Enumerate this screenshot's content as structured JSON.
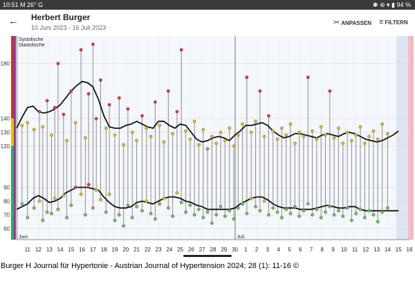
{
  "status": {
    "time": "10:51",
    "indicators": "M 26° G",
    "right_icons": "✱ ⊛ ▾ ▮",
    "battery": "94 %"
  },
  "header": {
    "title": "Herbert Burger",
    "date_range": "10 Juni 2023 - 16 Juli 2023",
    "back_icon": "arrow-left-icon"
  },
  "actions": {
    "adjust_label": "ANPASSEN",
    "filter_label": "FILTERN"
  },
  "caption": "Burger H Journal für Hypertonie - Austrian Journal of Hypertension 2024; 28 (1): 11-16 ©",
  "chart_data": {
    "type": "line",
    "legend": [
      "Systolische",
      "Diastolische"
    ],
    "y_ticks": [
      60,
      70,
      80,
      90,
      120,
      130,
      140,
      180
    ],
    "ylim": [
      52,
      200
    ],
    "x_ticks": [
      "11",
      "12",
      "13",
      "14",
      "15",
      "16",
      "17",
      "18",
      "19",
      "20",
      "21",
      "22",
      "23",
      "24",
      "25",
      "26",
      "27",
      "28",
      "29",
      "30",
      "1",
      "2",
      "3",
      "4",
      "5",
      "6",
      "7",
      "8",
      "9",
      "10",
      "11",
      "12",
      "13",
      "14",
      "15",
      "16"
    ],
    "month_labels": [
      {
        "label": "Juni",
        "day": 10
      },
      {
        "label": "Juli",
        "day": 30
      }
    ],
    "systolic_trend": {
      "days": [
        10,
        10.5,
        11,
        11.5,
        12,
        12.5,
        13,
        13.5,
        14,
        14.5,
        15,
        15.5,
        16,
        16.5,
        17,
        17.5,
        18,
        18.5,
        19,
        19.5,
        20,
        20.5,
        21,
        21.5,
        22,
        22.5,
        23,
        23.5,
        24,
        24.5,
        25,
        25.5,
        26,
        26.5,
        27,
        27.5,
        28,
        28.5,
        29,
        29.5,
        30,
        30.5,
        31,
        31.5,
        32,
        32.5,
        33,
        33.5,
        34,
        34.5,
        35,
        35.5,
        36,
        36.5,
        37,
        37.5,
        38,
        38.5,
        39,
        39.5,
        40,
        40.5,
        41,
        41.5,
        42,
        42.5,
        43,
        43.5,
        44,
        44.5,
        45
      ],
      "values": [
        133,
        141,
        148,
        149,
        145,
        144,
        145,
        147,
        150,
        155,
        160,
        164,
        167,
        166,
        163,
        154,
        142,
        134,
        133,
        133,
        135,
        136,
        138,
        136,
        134,
        133,
        138,
        138,
        135,
        133,
        136,
        135,
        130,
        125,
        123,
        124,
        126,
        127,
        126,
        124,
        128,
        131,
        135,
        135,
        136,
        137,
        135,
        131,
        128,
        126,
        127,
        129,
        129,
        128,
        127,
        126,
        128,
        129,
        128,
        127,
        129,
        130,
        129,
        127,
        125,
        124,
        123,
        124,
        126,
        128,
        131
      ]
    },
    "diastolic_trend": {
      "days": [
        10,
        10.5,
        11,
        11.5,
        12,
        12.5,
        13,
        13.5,
        14,
        14.5,
        15,
        15.5,
        16,
        16.5,
        17,
        17.5,
        18,
        18.5,
        19,
        19.5,
        20,
        20.5,
        21,
        21.5,
        22,
        22.5,
        23,
        23.5,
        24,
        24.5,
        25,
        25.5,
        26,
        26.5,
        27,
        27.5,
        28,
        28.5,
        29,
        29.5,
        30,
        30.5,
        31,
        31.5,
        32,
        32.5,
        33,
        33.5,
        34,
        34.5,
        35,
        35.5,
        36,
        36.5,
        37,
        37.5,
        38,
        38.5,
        39,
        39.5,
        40,
        40.5,
        41,
        41.5,
        42,
        42.5,
        43,
        43.5,
        44,
        44.5,
        45
      ],
      "values": [
        74,
        76,
        78,
        82,
        84,
        82,
        79,
        80,
        82,
        86,
        88,
        90,
        90,
        90,
        89,
        88,
        83,
        79,
        76,
        75,
        75,
        76,
        79,
        80,
        79,
        78,
        80,
        82,
        83,
        83,
        82,
        80,
        79,
        77,
        76,
        74,
        74,
        74,
        74,
        74,
        75,
        78,
        80,
        82,
        83,
        83,
        81,
        78,
        76,
        75,
        75,
        75,
        74,
        74,
        74,
        75,
        76,
        77,
        76,
        75,
        75,
        76,
        76,
        74,
        73,
        73,
        73,
        73,
        73,
        73,
        73
      ]
    },
    "readings": [
      {
        "day": 10.5,
        "sys": 135,
        "dia": 78
      },
      {
        "day": 11.0,
        "sys": 137,
        "dia": 68
      },
      {
        "day": 11.6,
        "sys": 132,
        "dia": 75
      },
      {
        "day": 12.1,
        "sys": 145,
        "dia": 80
      },
      {
        "day": 12.4,
        "sys": 134,
        "dia": 66
      },
      {
        "day": 12.8,
        "sys": 153,
        "dia": 72
      },
      {
        "day": 13.2,
        "sys": 128,
        "dia": 71
      },
      {
        "day": 13.5,
        "sys": 148,
        "dia": 82
      },
      {
        "day": 13.8,
        "sys": 180,
        "dia": 74
      },
      {
        "day": 14.3,
        "sys": 143,
        "dia": 84
      },
      {
        "day": 14.6,
        "sys": 124,
        "dia": 68
      },
      {
        "day": 15.0,
        "sys": 160,
        "dia": 77
      },
      {
        "day": 15.4,
        "sys": 137,
        "dia": 90
      },
      {
        "day": 15.9,
        "sys": 190,
        "dia": 85
      },
      {
        "day": 16.3,
        "sys": 126,
        "dia": 70
      },
      {
        "day": 16.6,
        "sys": 158,
        "dia": 92
      },
      {
        "day": 17.0,
        "sys": 194,
        "dia": 75
      },
      {
        "day": 17.3,
        "sys": 140,
        "dia": 88
      },
      {
        "day": 17.7,
        "sys": 168,
        "dia": 81
      },
      {
        "day": 18.2,
        "sys": 133,
        "dia": 72
      },
      {
        "day": 18.5,
        "sys": 150,
        "dia": 85
      },
      {
        "day": 19.0,
        "sys": 128,
        "dia": 66
      },
      {
        "day": 19.4,
        "sys": 155,
        "dia": 70
      },
      {
        "day": 19.8,
        "sys": 121,
        "dia": 62
      },
      {
        "day": 20.2,
        "sys": 147,
        "dia": 77
      },
      {
        "day": 20.6,
        "sys": 130,
        "dia": 68
      },
      {
        "day": 21.0,
        "sys": 124,
        "dia": 76
      },
      {
        "day": 21.5,
        "sys": 142,
        "dia": 73
      },
      {
        "day": 21.9,
        "sys": 133,
        "dia": 80
      },
      {
        "day": 22.3,
        "sys": 127,
        "dia": 71
      },
      {
        "day": 22.7,
        "sys": 152,
        "dia": 67
      },
      {
        "day": 23.1,
        "sys": 135,
        "dia": 78
      },
      {
        "day": 23.5,
        "sys": 123,
        "dia": 82
      },
      {
        "day": 23.9,
        "sys": 160,
        "dia": 75
      },
      {
        "day": 24.3,
        "sys": 129,
        "dia": 69
      },
      {
        "day": 24.7,
        "sys": 145,
        "dia": 86
      },
      {
        "day": 25.1,
        "sys": 190,
        "dia": 79
      },
      {
        "day": 25.5,
        "sys": 131,
        "dia": 72
      },
      {
        "day": 25.9,
        "sys": 125,
        "dia": 77
      },
      {
        "day": 26.3,
        "sys": 138,
        "dia": 70
      },
      {
        "day": 26.7,
        "sys": 121,
        "dia": 74
      },
      {
        "day": 27.1,
        "sys": 132,
        "dia": 68
      },
      {
        "day": 27.5,
        "sys": 118,
        "dia": 72
      },
      {
        "day": 27.9,
        "sys": 127,
        "dia": 64
      },
      {
        "day": 28.3,
        "sys": 122,
        "dia": 70
      },
      {
        "day": 28.7,
        "sys": 130,
        "dia": 76
      },
      {
        "day": 29.1,
        "sys": 124,
        "dia": 69
      },
      {
        "day": 29.5,
        "sys": 133,
        "dia": 73
      },
      {
        "day": 29.9,
        "sys": 120,
        "dia": 67
      },
      {
        "day": 30.3,
        "sys": 128,
        "dia": 75
      },
      {
        "day": 30.7,
        "sys": 136,
        "dia": 78
      },
      {
        "day": 31.1,
        "sys": 170,
        "dia": 71
      },
      {
        "day": 31.5,
        "sys": 130,
        "dia": 82
      },
      {
        "day": 31.9,
        "sys": 138,
        "dia": 76
      },
      {
        "day": 32.3,
        "sys": 160,
        "dia": 73
      },
      {
        "day": 32.7,
        "sys": 127,
        "dia": 80
      },
      {
        "day": 33.1,
        "sys": 142,
        "dia": 70
      },
      {
        "day": 33.5,
        "sys": 131,
        "dia": 75
      },
      {
        "day": 33.9,
        "sys": 125,
        "dia": 72
      },
      {
        "day": 34.3,
        "sys": 133,
        "dia": 68
      },
      {
        "day": 34.7,
        "sys": 128,
        "dia": 74
      },
      {
        "day": 35.1,
        "sys": 136,
        "dia": 71
      },
      {
        "day": 35.5,
        "sys": 122,
        "dia": 76
      },
      {
        "day": 35.9,
        "sys": 130,
        "dia": 69
      },
      {
        "day": 36.3,
        "sys": 127,
        "dia": 73
      },
      {
        "day": 36.7,
        "sys": 170,
        "dia": 78
      },
      {
        "day": 37.1,
        "sys": 131,
        "dia": 70
      },
      {
        "day": 37.5,
        "sys": 125,
        "dia": 74
      },
      {
        "day": 37.9,
        "sys": 134,
        "dia": 68
      },
      {
        "day": 38.3,
        "sys": 128,
        "dia": 72
      },
      {
        "day": 38.7,
        "sys": 160,
        "dia": 76
      },
      {
        "day": 39.1,
        "sys": 126,
        "dia": 70
      },
      {
        "day": 39.5,
        "sys": 133,
        "dia": 73
      },
      {
        "day": 39.9,
        "sys": 122,
        "dia": 69
      },
      {
        "day": 40.3,
        "sys": 130,
        "dia": 75
      },
      {
        "day": 40.7,
        "sys": 124,
        "dia": 66
      },
      {
        "day": 41.1,
        "sys": 128,
        "dia": 71
      },
      {
        "day": 41.5,
        "sys": 134,
        "dia": 74
      },
      {
        "day": 41.9,
        "sys": 122,
        "dia": 68
      },
      {
        "day": 42.3,
        "sys": 127,
        "dia": 73
      },
      {
        "day": 42.7,
        "sys": 131,
        "dia": 70
      },
      {
        "day": 43.1,
        "sys": 125,
        "dia": 65
      },
      {
        "day": 43.5,
        "sys": 136,
        "dia": 72
      },
      {
        "day": 44.0,
        "sys": 129,
        "dia": 75
      }
    ]
  }
}
